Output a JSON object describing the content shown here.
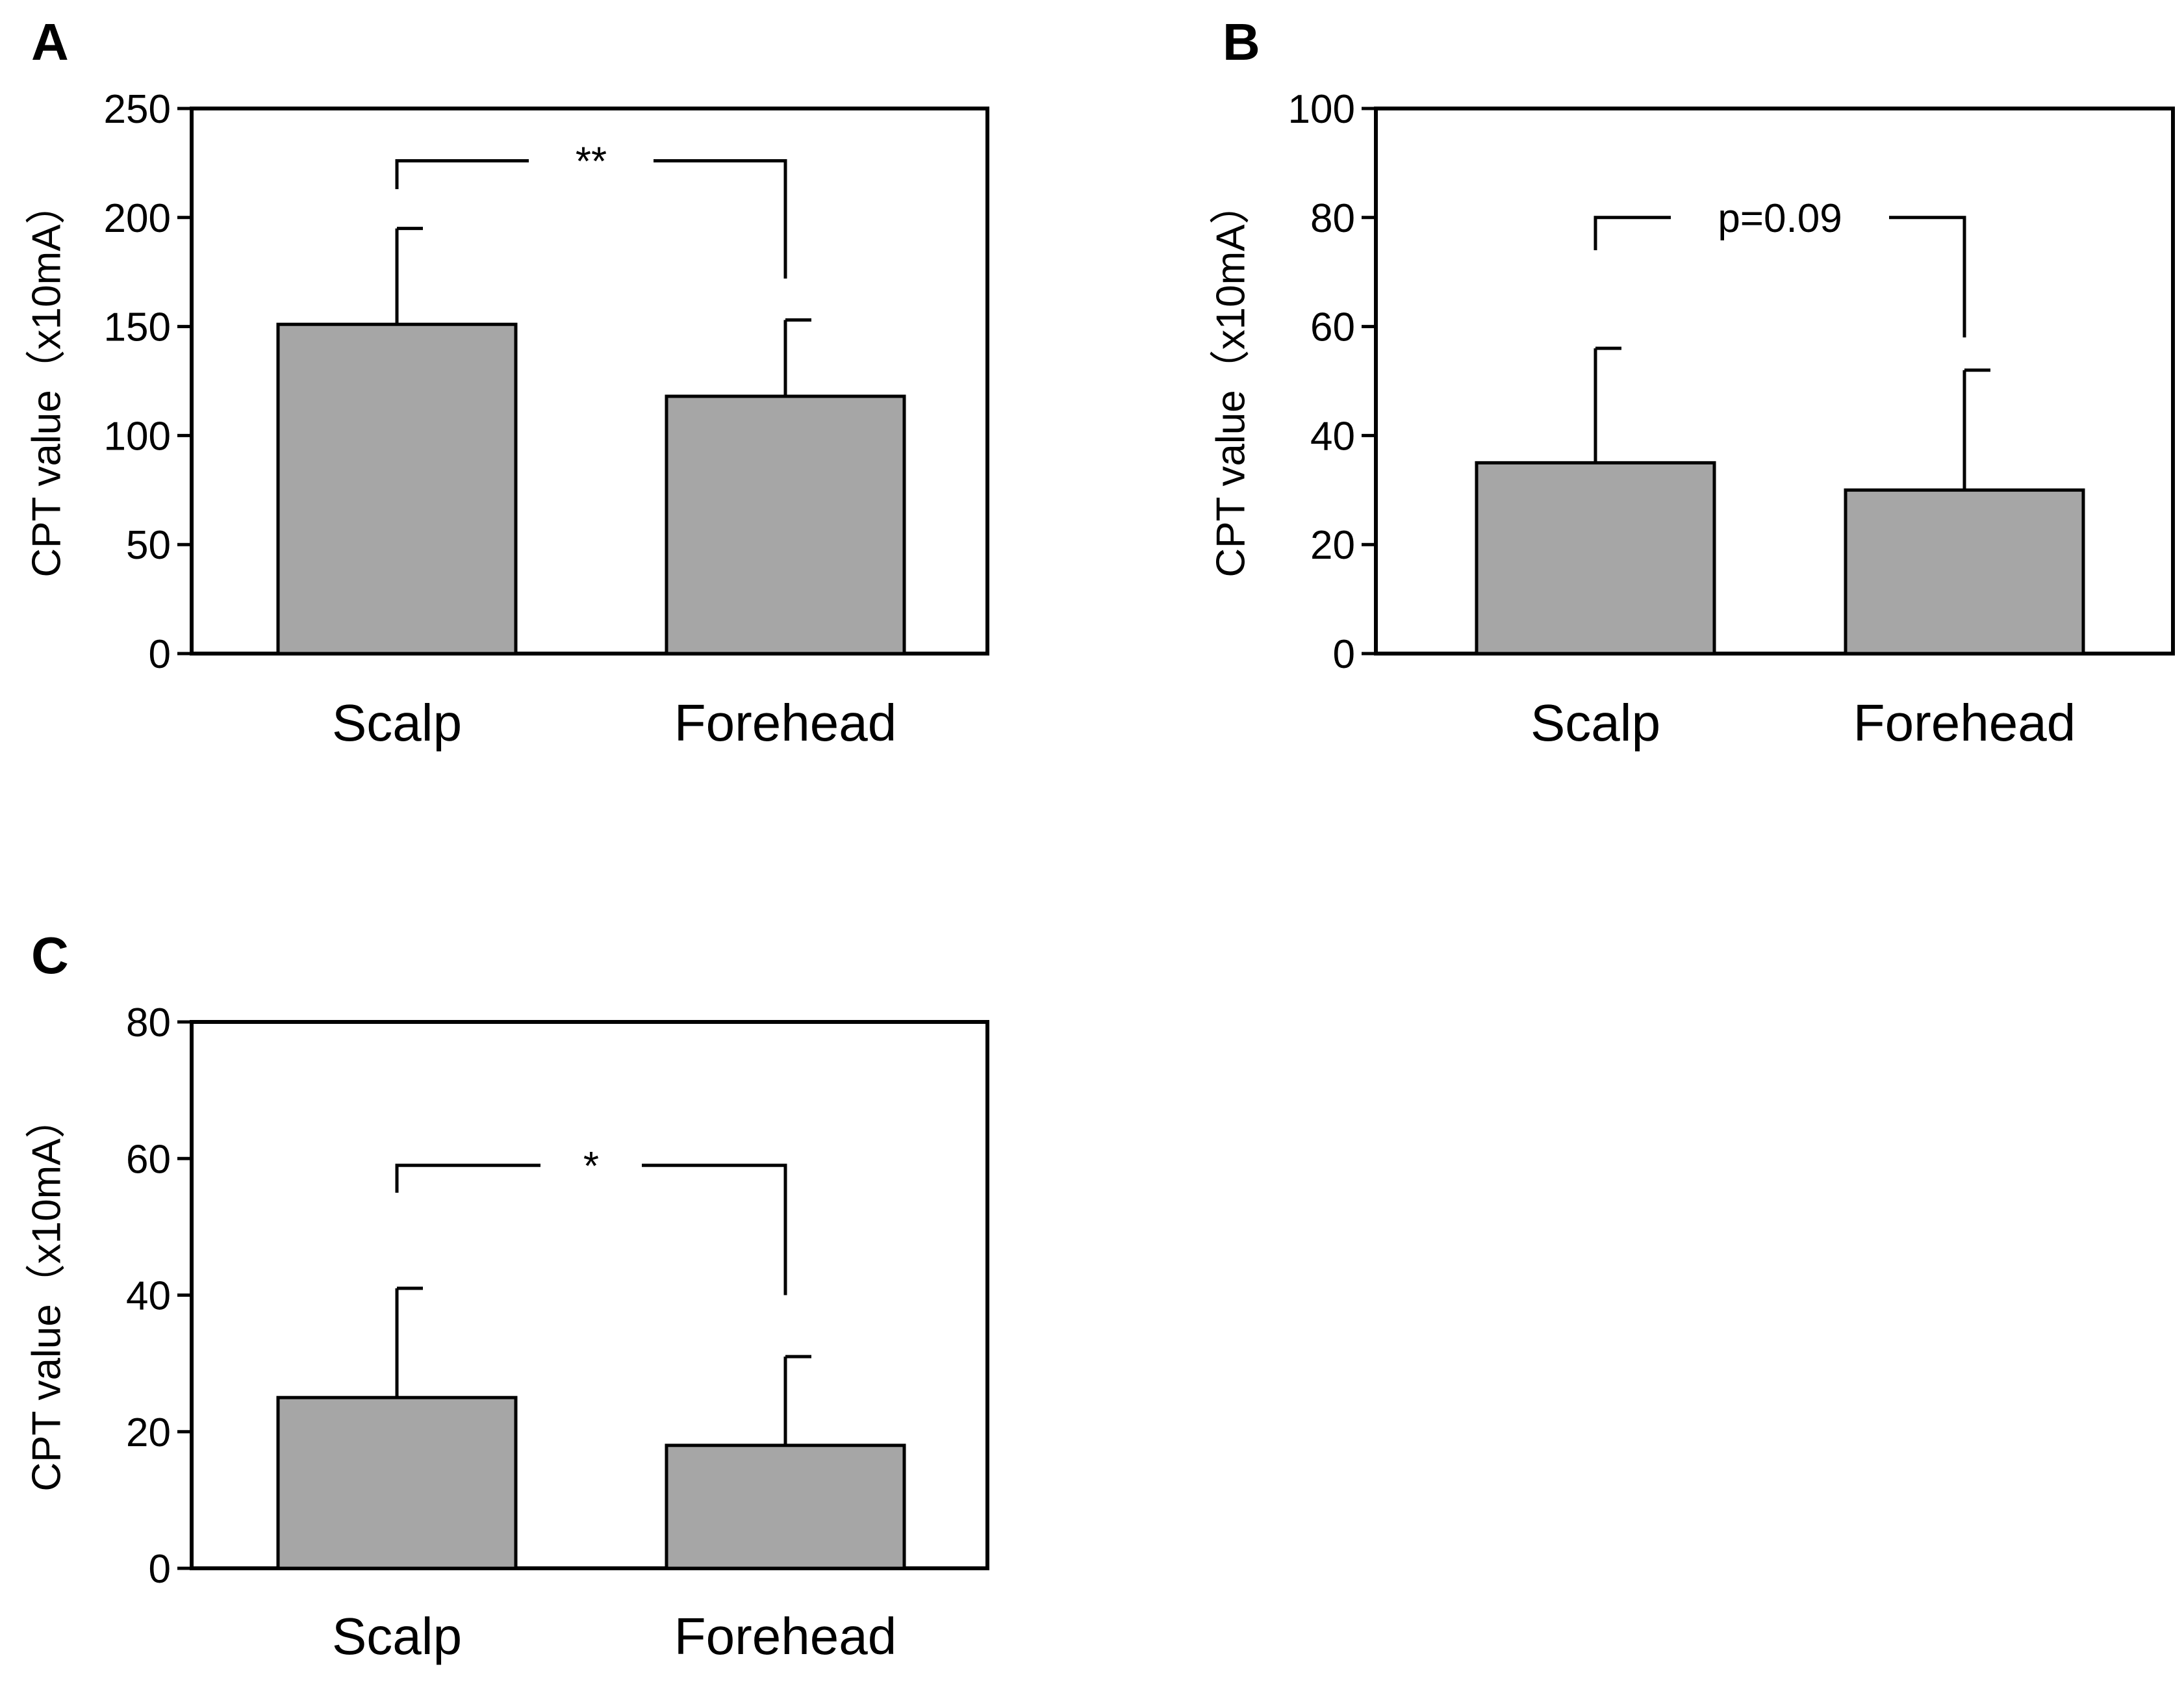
{
  "chart_data": [
    {
      "panel": "A",
      "type": "bar",
      "categories": [
        "Scalp",
        "Forehead"
      ],
      "values": [
        151,
        118
      ],
      "error_upper": [
        195,
        153
      ],
      "ylabel": "CPT value（x10mA）",
      "ylim": [
        0,
        250
      ],
      "yticks": [
        0,
        50,
        100,
        150,
        200,
        250
      ],
      "significance": {
        "label": "**",
        "bracket_y": 226,
        "left_tip": 213,
        "right_tip": 172
      },
      "colors": {
        "bar": "#a6a6a6",
        "line": "#000000"
      }
    },
    {
      "panel": "B",
      "type": "bar",
      "categories": [
        "Scalp",
        "Forehead"
      ],
      "values": [
        35,
        30
      ],
      "error_upper": [
        56,
        52
      ],
      "ylabel": "CPT value（x10mA）",
      "ylim": [
        0,
        100
      ],
      "yticks": [
        0,
        20,
        40,
        60,
        80,
        100
      ],
      "significance": {
        "label": "p=0.09",
        "bracket_y": 80,
        "left_tip": 74,
        "right_tip": 58
      },
      "colors": {
        "bar": "#a6a6a6",
        "line": "#000000"
      }
    },
    {
      "panel": "C",
      "type": "bar",
      "categories": [
        "Scalp",
        "Forehead"
      ],
      "values": [
        25,
        18
      ],
      "error_upper": [
        41,
        31
      ],
      "ylabel": "CPT value（x10mA）",
      "ylim": [
        0,
        80
      ],
      "yticks": [
        0,
        20,
        40,
        60,
        80
      ],
      "significance": {
        "label": "*",
        "bracket_y": 59,
        "left_tip": 55,
        "right_tip": 40
      },
      "colors": {
        "bar": "#a6a6a6",
        "line": "#000000"
      }
    }
  ]
}
